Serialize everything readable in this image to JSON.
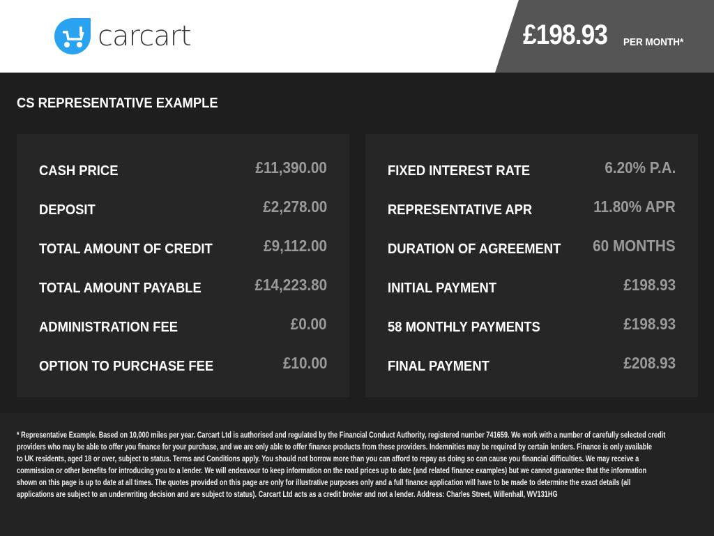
{
  "brand": {
    "name": "carcart",
    "accent": "#29a3f0"
  },
  "header": {
    "monthly_price": "£198.93",
    "per_month_label": "PER MONTH*"
  },
  "section_title": "CS REPRESENTATIVE EXAMPLE",
  "left_panel": [
    {
      "label": "CASH PRICE",
      "value": "£11,390.00"
    },
    {
      "label": "DEPOSIT",
      "value": "£2,278.00"
    },
    {
      "label": "TOTAL AMOUNT OF CREDIT",
      "value": "£9,112.00"
    },
    {
      "label": "TOTAL AMOUNT PAYABLE",
      "value": "£14,223.80"
    },
    {
      "label": "ADMINISTRATION FEE",
      "value": "£0.00"
    },
    {
      "label": "OPTION TO PURCHASE FEE",
      "value": "£10.00"
    }
  ],
  "right_panel": [
    {
      "label": "FIXED INTEREST RATE",
      "value": "6.20% P.A."
    },
    {
      "label": "REPRESENTATIVE APR",
      "value": "11.80% APR"
    },
    {
      "label": "DURATION OF AGREEMENT",
      "value": "60 MONTHS"
    },
    {
      "label": "INITIAL PAYMENT",
      "value": "£198.93"
    },
    {
      "label": "58 MONTHLY PAYMENTS",
      "value": "£198.93"
    },
    {
      "label": "FINAL PAYMENT",
      "value": "£208.93"
    }
  ],
  "disclaimer_lines": [
    "* Representative Example. Based on 10,000 miles per year. Carcart Ltd is authorised and regulated by the Financial Conduct Authority, registered number 741659. We work with a number of carefully selected credit",
    "providers who may be able to offer you finance for your purchase, and we are only able to offer finance products from these providers. Indemnities may be required by certain lenders. Finance is only available",
    "to UK residents, aged 18 or over, subject to status. Terms and Conditions apply. You should not borrow more than you can afford to repay as doing so can cause you financial difficulties. We may receive a",
    "commission or other benefits for introducing you to a lender. We will endeavour to keep information on the road prices up to date (and related finance examples) but we cannot guarantee that the information",
    "shown on this page is up to date at all times. The quotes provided on this page are only for illustrative purposes only and a full finance application will have to be made to determine the exact details (all",
    "applications are subject to an underwriting decision and are subject to status). Carcart Ltd acts as a credit broker and not a lender. Address: Charles Street, Willenhall, WV131HG"
  ]
}
